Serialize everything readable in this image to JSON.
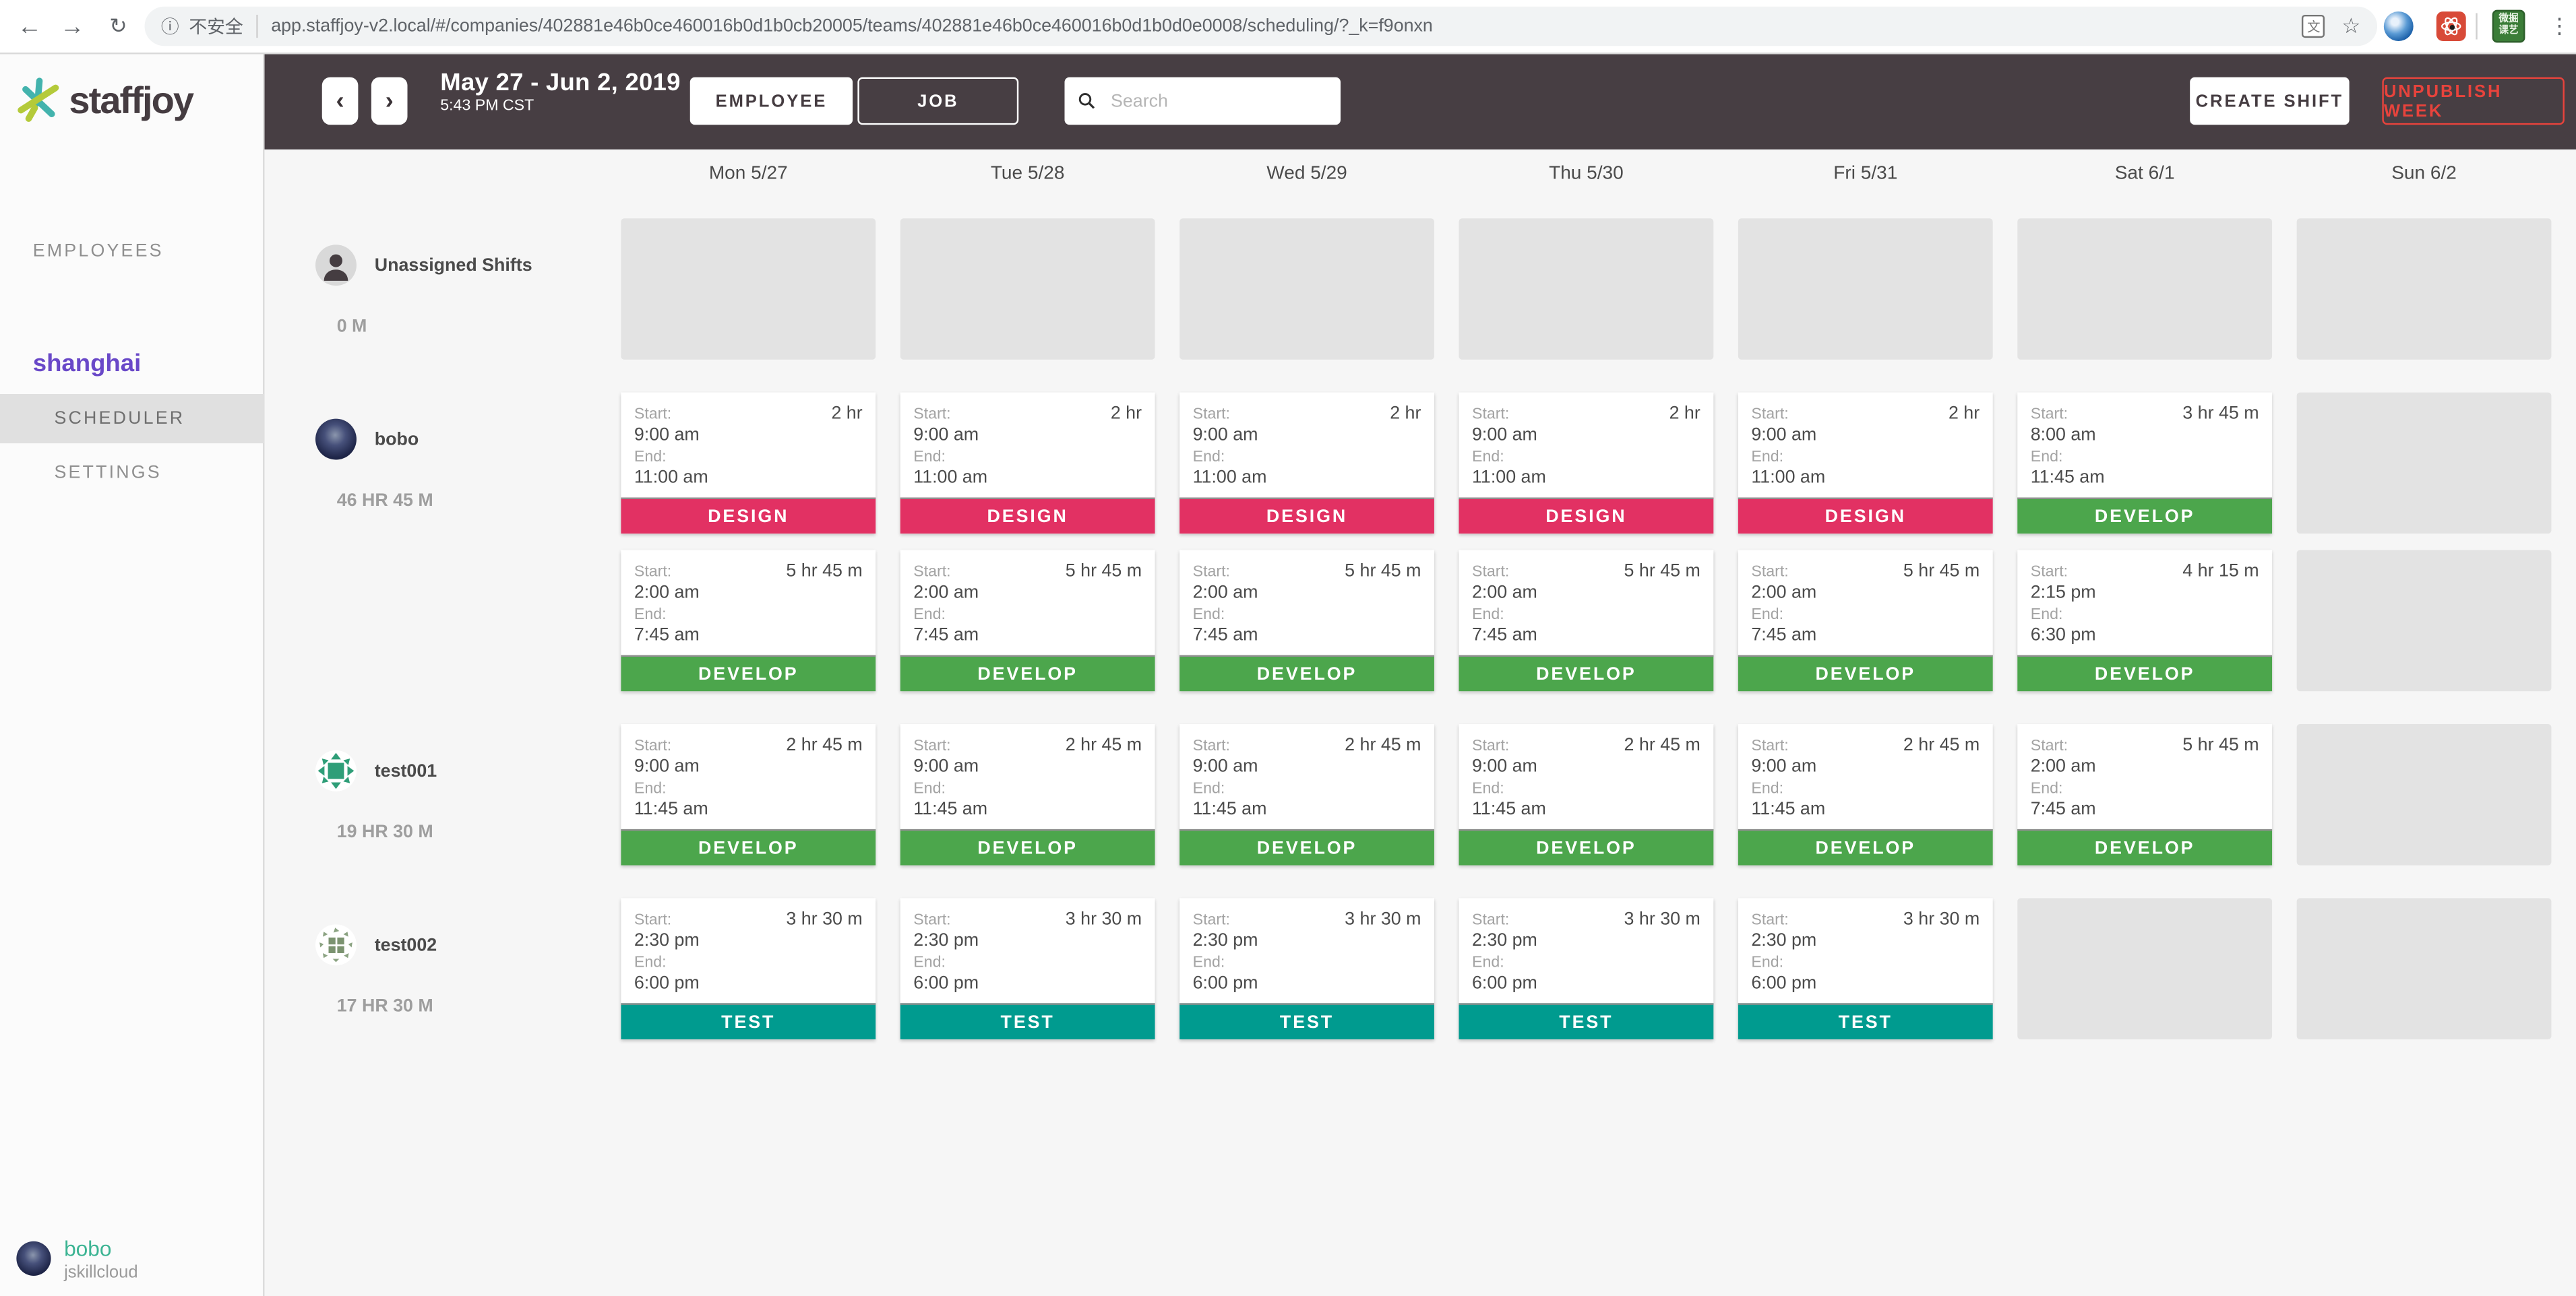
{
  "browser": {
    "back_icon": "back-arrow",
    "forward_icon": "forward-arrow",
    "reload_icon": "reload",
    "security_label": "不安全",
    "url": "app.staffjoy-v2.local/#/companies/402881e46b0ce460016b0d1b0cb20005/teams/402881e46b0ce460016b0d1b0d0e0008/scheduling/?_k=f9onxn",
    "translate_glyph": "文",
    "extension_badge_text": "微掘 课艺",
    "menu_icon": "⋮",
    "star_icon": "☆",
    "info_icon": "ⓘ"
  },
  "brand": {
    "name": "staffjoy"
  },
  "topbar": {
    "prev_label": "‹",
    "next_label": "›",
    "date_range": "May 27 - Jun 2, 2019",
    "time": "5:43 PM CST",
    "employee_label": "EMPLOYEE",
    "job_label": "JOB",
    "search_placeholder": "Search",
    "create_shift_label": "CREATE SHIFT",
    "unpublish_label": "UNPUBLISH WEEK"
  },
  "sidebar": {
    "employees_label": "EMPLOYEES",
    "team_name": "shanghai",
    "scheduler_label": "SCHEDULER",
    "settings_label": "SETTINGS",
    "user": {
      "name": "bobo",
      "company": "jskillcloud"
    }
  },
  "colors": {
    "design": "#e23163",
    "develop": "#4ca64c",
    "test": "#009b8f",
    "accent_red": "#e8433c",
    "team_purple": "#6948c8",
    "brand_teal": "#43b3ad",
    "brand_lime": "#b4ca3a"
  },
  "calendar": {
    "start_label": "Start:",
    "end_label": "End:",
    "days": [
      "Mon 5/27",
      "Tue 5/28",
      "Wed 5/29",
      "Thu 5/30",
      "Fri 5/31",
      "Sat 6/1",
      "Sun 6/2"
    ],
    "rows": [
      {
        "name": "Unassigned Shifts",
        "hours": "0 M",
        "avatar": "unassigned",
        "lines": [
          [
            null,
            null,
            null,
            null,
            null,
            null,
            null
          ]
        ]
      },
      {
        "name": "bobo",
        "hours": "46 HR 45 M",
        "avatar": "bobo",
        "lines": [
          [
            {
              "start": "9:00 am",
              "end": "11:00 am",
              "duration": "2 hr",
              "job": "DESIGN",
              "job_key": "design"
            },
            {
              "start": "9:00 am",
              "end": "11:00 am",
              "duration": "2 hr",
              "job": "DESIGN",
              "job_key": "design"
            },
            {
              "start": "9:00 am",
              "end": "11:00 am",
              "duration": "2 hr",
              "job": "DESIGN",
              "job_key": "design"
            },
            {
              "start": "9:00 am",
              "end": "11:00 am",
              "duration": "2 hr",
              "job": "DESIGN",
              "job_key": "design"
            },
            {
              "start": "9:00 am",
              "end": "11:00 am",
              "duration": "2 hr",
              "job": "DESIGN",
              "job_key": "design"
            },
            {
              "start": "8:00 am",
              "end": "11:45 am",
              "duration": "3 hr 45 m",
              "job": "DEVELOP",
              "job_key": "develop"
            },
            null
          ],
          [
            {
              "start": "2:00 am",
              "end": "7:45 am",
              "duration": "5 hr 45 m",
              "job": "DEVELOP",
              "job_key": "develop"
            },
            {
              "start": "2:00 am",
              "end": "7:45 am",
              "duration": "5 hr 45 m",
              "job": "DEVELOP",
              "job_key": "develop"
            },
            {
              "start": "2:00 am",
              "end": "7:45 am",
              "duration": "5 hr 45 m",
              "job": "DEVELOP",
              "job_key": "develop"
            },
            {
              "start": "2:00 am",
              "end": "7:45 am",
              "duration": "5 hr 45 m",
              "job": "DEVELOP",
              "job_key": "develop"
            },
            {
              "start": "2:00 am",
              "end": "7:45 am",
              "duration": "5 hr 45 m",
              "job": "DEVELOP",
              "job_key": "develop"
            },
            {
              "start": "2:15 pm",
              "end": "6:30 pm",
              "duration": "4 hr 15 m",
              "job": "DEVELOP",
              "job_key": "develop"
            },
            null
          ]
        ]
      },
      {
        "name": "test001",
        "hours": "19 HR 30 M",
        "avatar": "test001",
        "lines": [
          [
            {
              "start": "9:00 am",
              "end": "11:45 am",
              "duration": "2 hr 45 m",
              "job": "DEVELOP",
              "job_key": "develop"
            },
            {
              "start": "9:00 am",
              "end": "11:45 am",
              "duration": "2 hr 45 m",
              "job": "DEVELOP",
              "job_key": "develop"
            },
            {
              "start": "9:00 am",
              "end": "11:45 am",
              "duration": "2 hr 45 m",
              "job": "DEVELOP",
              "job_key": "develop"
            },
            {
              "start": "9:00 am",
              "end": "11:45 am",
              "duration": "2 hr 45 m",
              "job": "DEVELOP",
              "job_key": "develop"
            },
            {
              "start": "9:00 am",
              "end": "11:45 am",
              "duration": "2 hr 45 m",
              "job": "DEVELOP",
              "job_key": "develop"
            },
            {
              "start": "2:00 am",
              "end": "7:45 am",
              "duration": "5 hr 45 m",
              "job": "DEVELOP",
              "job_key": "develop"
            },
            null
          ]
        ]
      },
      {
        "name": "test002",
        "hours": "17 HR 30 M",
        "avatar": "test002",
        "lines": [
          [
            {
              "start": "2:30 pm",
              "end": "6:00 pm",
              "duration": "3 hr 30 m",
              "job": "TEST",
              "job_key": "test"
            },
            {
              "start": "2:30 pm",
              "end": "6:00 pm",
              "duration": "3 hr 30 m",
              "job": "TEST",
              "job_key": "test"
            },
            {
              "start": "2:30 pm",
              "end": "6:00 pm",
              "duration": "3 hr 30 m",
              "job": "TEST",
              "job_key": "test"
            },
            {
              "start": "2:30 pm",
              "end": "6:00 pm",
              "duration": "3 hr 30 m",
              "job": "TEST",
              "job_key": "test"
            },
            {
              "start": "2:30 pm",
              "end": "6:00 pm",
              "duration": "3 hr 30 m",
              "job": "TEST",
              "job_key": "test"
            },
            null,
            null
          ]
        ]
      }
    ]
  }
}
